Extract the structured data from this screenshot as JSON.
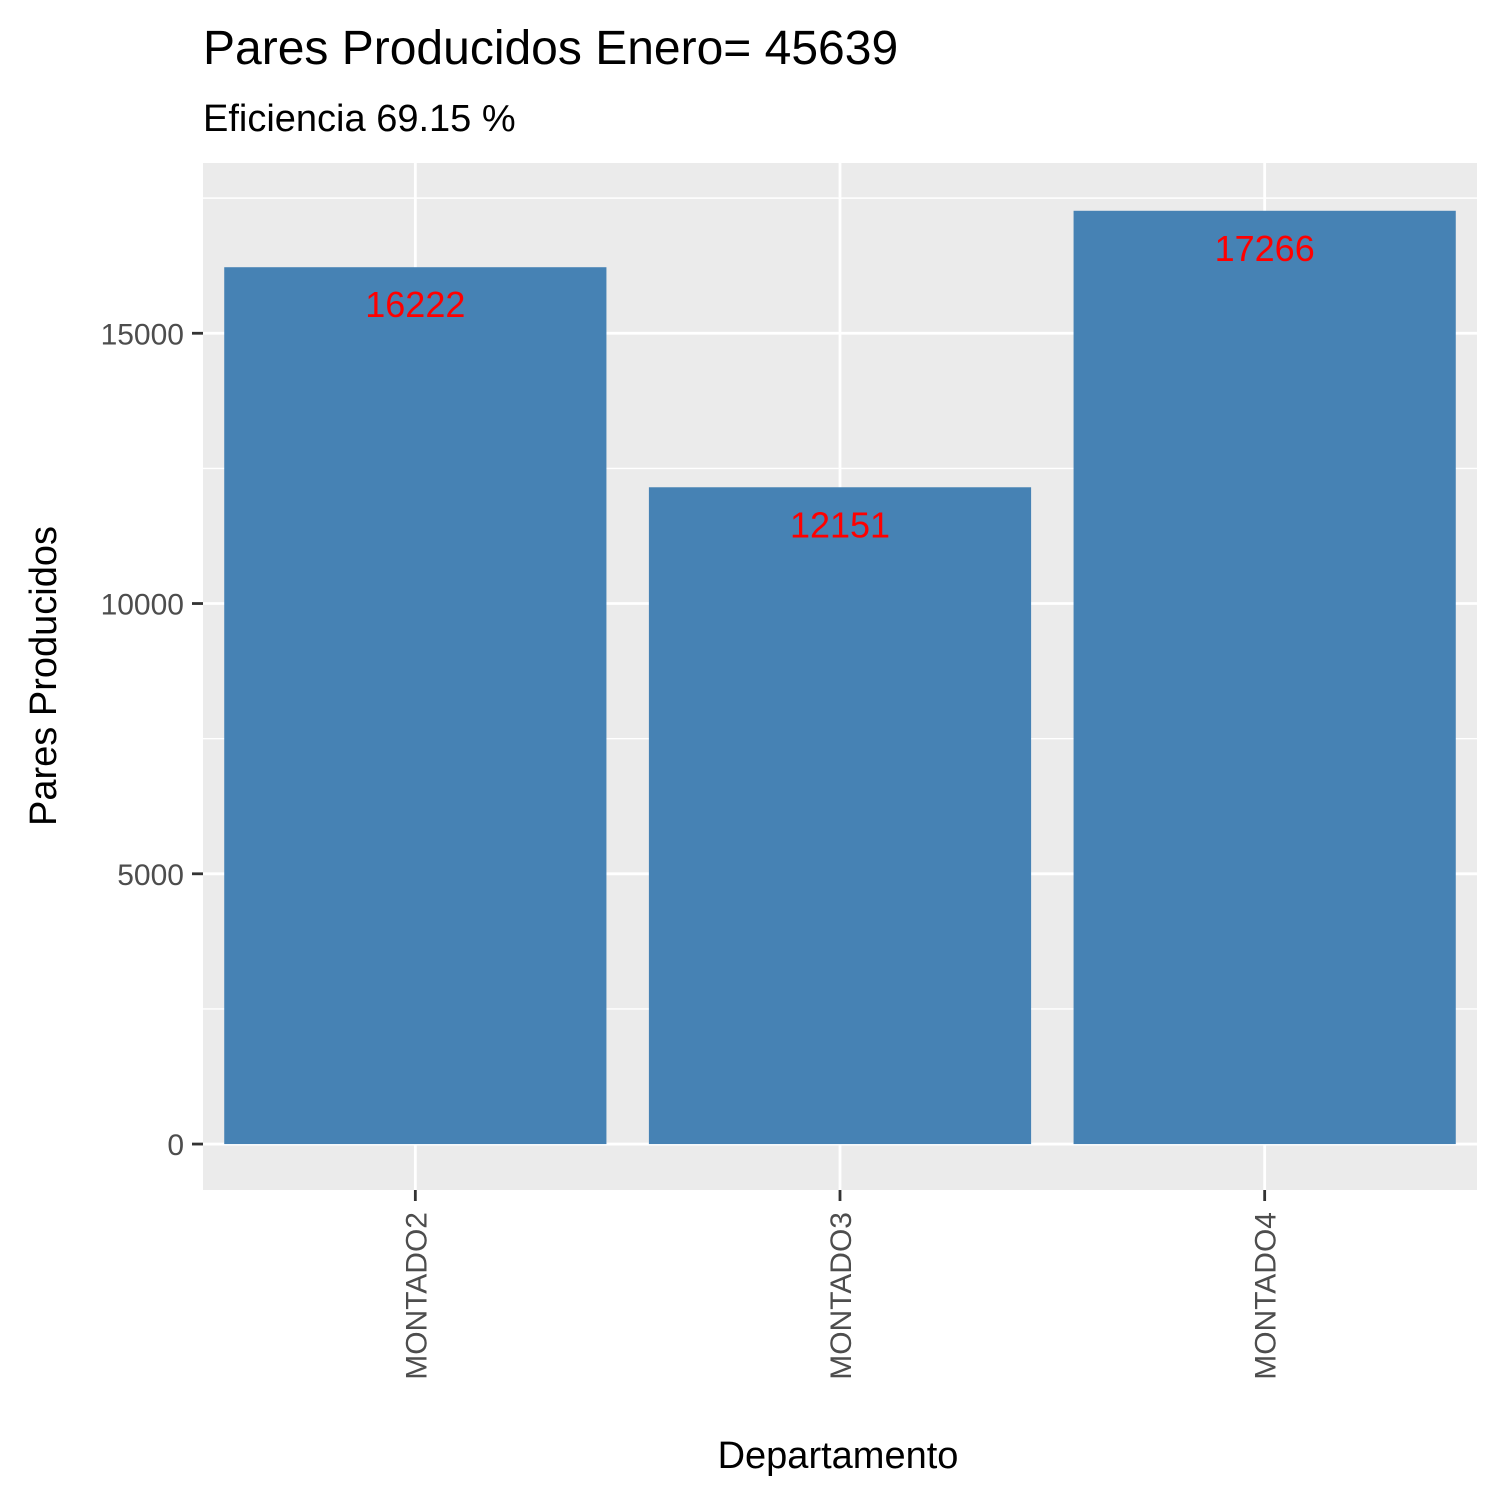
{
  "chart_data": {
    "type": "bar",
    "title": "Pares Producidos Enero= 45639",
    "subtitle": "Eficiencia 69.15 %",
    "xlabel": "Departamento",
    "ylabel": "Pares Producidos",
    "categories": [
      "MONTADO2",
      "MONTADO3",
      "MONTADO4"
    ],
    "values": [
      16222,
      12151,
      17266
    ],
    "data_labels": [
      "16222",
      "12151",
      "17266"
    ],
    "ylim": [
      -850,
      18150
    ],
    "yticks": [
      0,
      5000,
      10000,
      15000
    ],
    "ytick_labels": [
      "0",
      "5000",
      "10000",
      "15000"
    ],
    "grid": true,
    "colors": {
      "bar": "#4682B4",
      "data_label": "#FF0000",
      "panel": "#EBEBEB",
      "grid": "#FFFFFF",
      "tick": "#333333"
    }
  }
}
